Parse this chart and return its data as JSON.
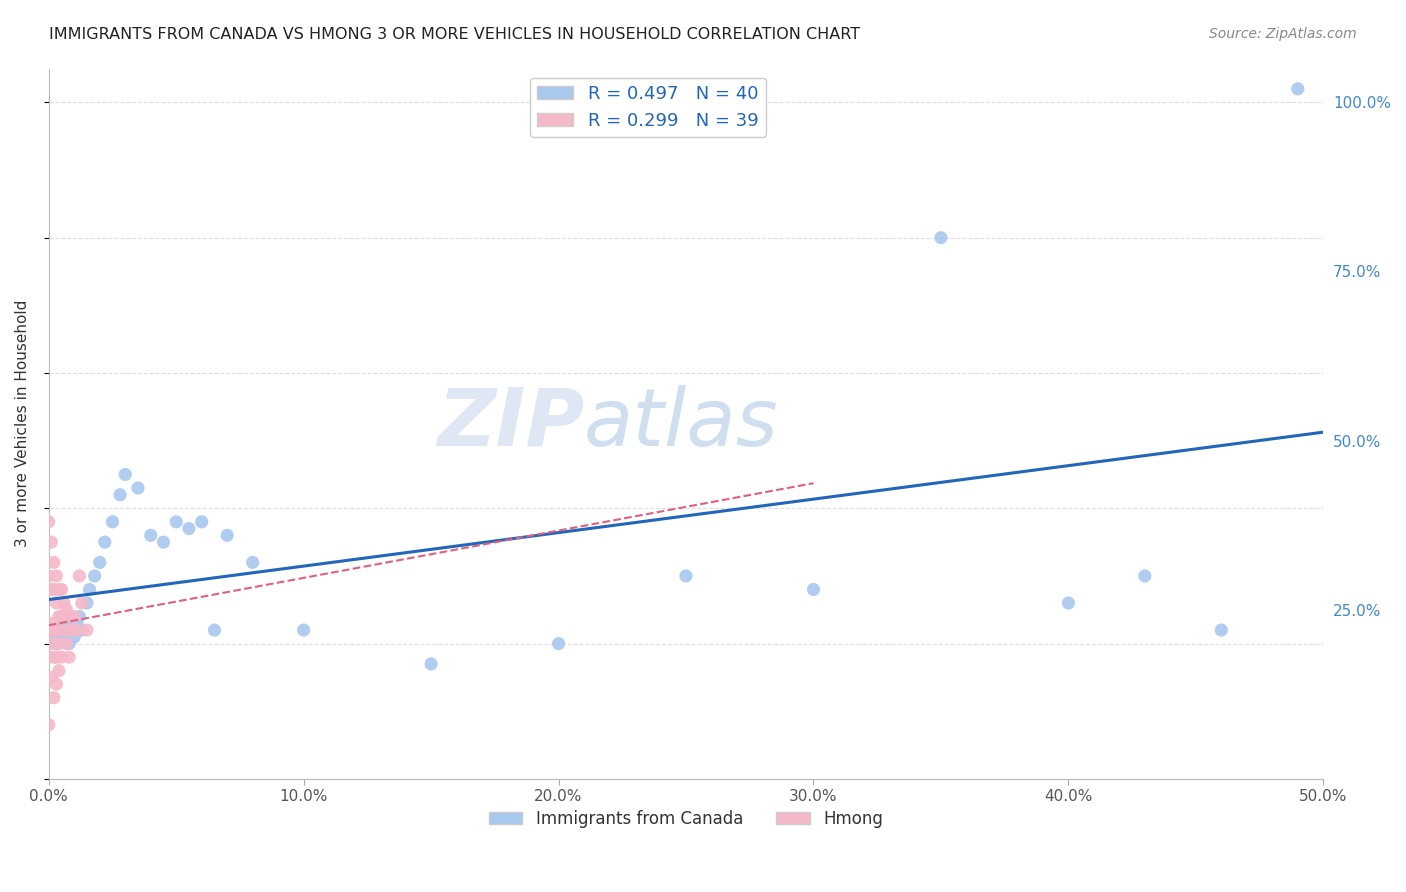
{
  "title": "IMMIGRANTS FROM CANADA VS HMONG 3 OR MORE VEHICLES IN HOUSEHOLD CORRELATION CHART",
  "source": "Source: ZipAtlas.com",
  "xlabel_bottom": [
    "Immigrants from Canada",
    "Hmong"
  ],
  "ylabel": "3 or more Vehicles in Household",
  "xlim": [
    0.0,
    0.5
  ],
  "ylim": [
    0.0,
    1.05
  ],
  "xtick_labels": [
    "0.0%",
    "10.0%",
    "20.0%",
    "30.0%",
    "40.0%",
    "50.0%"
  ],
  "xtick_values": [
    0.0,
    0.1,
    0.2,
    0.3,
    0.4,
    0.5
  ],
  "ytick_labels_right": [
    "100.0%",
    "75.0%",
    "50.0%",
    "25.0%"
  ],
  "ytick_values_right": [
    1.0,
    0.75,
    0.5,
    0.25
  ],
  "blue_R": 0.497,
  "blue_N": 40,
  "pink_R": 0.299,
  "pink_N": 39,
  "blue_color": "#A8C8F0",
  "pink_color": "#F5B8C8",
  "blue_line_color": "#2266BB",
  "pink_line_color": "#E06080",
  "watermark_zip": "ZIP",
  "watermark_atlas": "atlas",
  "background_color": "#FFFFFF",
  "grid_color": "#DDDDDD",
  "blue_x": [
    0.001,
    0.002,
    0.003,
    0.004,
    0.005,
    0.006,
    0.007,
    0.008,
    0.009,
    0.01,
    0.011,
    0.012,
    0.013,
    0.015,
    0.016,
    0.018,
    0.02,
    0.022,
    0.025,
    0.028,
    0.03,
    0.035,
    0.04,
    0.045,
    0.05,
    0.055,
    0.06,
    0.065,
    0.07,
    0.08,
    0.1,
    0.15,
    0.2,
    0.25,
    0.3,
    0.35,
    0.4,
    0.43,
    0.46,
    0.49
  ],
  "blue_y": [
    0.22,
    0.21,
    0.2,
    0.22,
    0.21,
    0.23,
    0.22,
    0.2,
    0.22,
    0.21,
    0.23,
    0.24,
    0.22,
    0.26,
    0.28,
    0.3,
    0.32,
    0.35,
    0.38,
    0.42,
    0.45,
    0.43,
    0.36,
    0.35,
    0.38,
    0.37,
    0.38,
    0.22,
    0.36,
    0.32,
    0.22,
    0.17,
    0.2,
    0.3,
    0.28,
    0.8,
    0.26,
    0.3,
    0.22,
    1.02
  ],
  "pink_x": [
    0.0,
    0.0,
    0.0,
    0.0,
    0.0,
    0.001,
    0.001,
    0.001,
    0.001,
    0.001,
    0.002,
    0.002,
    0.002,
    0.002,
    0.002,
    0.003,
    0.003,
    0.003,
    0.003,
    0.003,
    0.004,
    0.004,
    0.004,
    0.004,
    0.005,
    0.005,
    0.005,
    0.006,
    0.006,
    0.007,
    0.007,
    0.008,
    0.008,
    0.009,
    0.01,
    0.011,
    0.012,
    0.013,
    0.015
  ],
  "pink_y": [
    0.38,
    0.3,
    0.22,
    0.18,
    0.08,
    0.35,
    0.28,
    0.23,
    0.2,
    0.15,
    0.32,
    0.28,
    0.22,
    0.18,
    0.12,
    0.3,
    0.26,
    0.22,
    0.18,
    0.14,
    0.28,
    0.24,
    0.2,
    0.16,
    0.28,
    0.24,
    0.18,
    0.26,
    0.22,
    0.25,
    0.2,
    0.24,
    0.18,
    0.22,
    0.24,
    0.22,
    0.3,
    0.26,
    0.22
  ]
}
